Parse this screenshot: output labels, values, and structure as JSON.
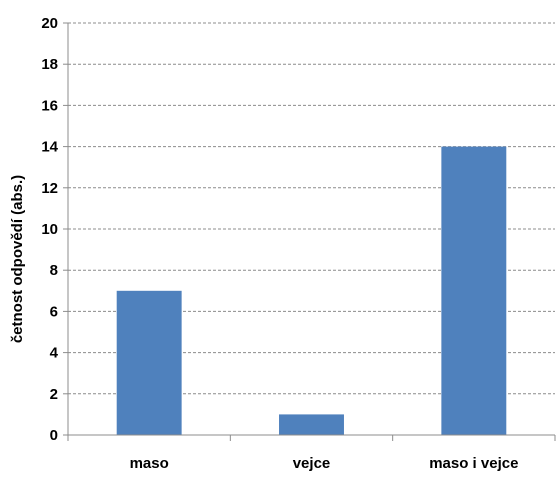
{
  "chart_data": {
    "type": "bar",
    "categories": [
      "maso",
      "vejce",
      "maso i vejce"
    ],
    "values": [
      7,
      1,
      14
    ],
    "title": "",
    "xlabel": "",
    "ylabel": "četnost odpovědí (abs.)",
    "ylim": [
      0,
      20
    ],
    "yticks": [
      "0",
      "2",
      "4",
      "6",
      "8",
      "10",
      "12",
      "14",
      "16",
      "18",
      "20"
    ],
    "grid": true,
    "bar_color": "#4f81bd",
    "grid_color": "#8c8c8c"
  }
}
